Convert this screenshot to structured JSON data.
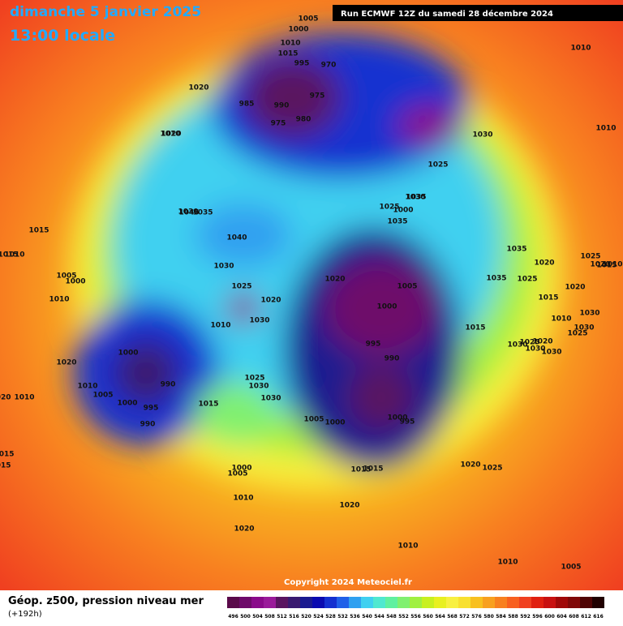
{
  "header": {
    "date": "dimanche 5 janvier 2025",
    "time": "13:00 locale",
    "run": "Run ECMWF 12Z du samedi 28 décembre 2024"
  },
  "copyright": "Copyright 2024 Meteociel.fr",
  "footer": {
    "label": "Géop. z500, pression niveau mer",
    "lead": "(+192h)"
  },
  "scale": {
    "values": [
      496,
      500,
      504,
      508,
      512,
      516,
      520,
      524,
      528,
      532,
      536,
      540,
      544,
      548,
      552,
      556,
      560,
      564,
      568,
      572,
      576,
      580,
      584,
      588,
      592,
      596,
      600,
      604,
      608,
      612,
      616
    ],
    "colors": [
      "#5a0a4a",
      "#6e0a6a",
      "#8a0a8a",
      "#9a1a9a",
      "#5a1460",
      "#3a1a70",
      "#1a1a90",
      "#0a0ab0",
      "#1430d0",
      "#2060e8",
      "#30a0f0",
      "#40d0f0",
      "#50e8d0",
      "#60f0a0",
      "#80f070",
      "#a0f040",
      "#c8f020",
      "#e8f020",
      "#f8f040",
      "#f8e030",
      "#f8c020",
      "#f8a020",
      "#f88020",
      "#f86020",
      "#f04020",
      "#e02010",
      "#c81010",
      "#a00808",
      "#800808",
      "#500404",
      "#200000"
    ]
  },
  "pressure_labels": [
    1005,
    1000,
    1010,
    1015,
    995,
    990,
    985,
    975,
    975,
    980,
    970,
    1020,
    1010,
    1030,
    1025,
    1025,
    1030,
    1035,
    1035,
    1030,
    1045,
    1040,
    1030,
    1025,
    1020,
    1030,
    1010,
    1015,
    1005,
    1000,
    1010,
    1020,
    1000,
    1010,
    1005,
    1000,
    995,
    990,
    990,
    1015,
    1010,
    1015,
    1020,
    1015,
    1010,
    1025,
    1030,
    1030,
    1035,
    1005,
    1000,
    1005,
    1000,
    995,
    990,
    1000,
    995,
    1015,
    1020,
    1015,
    1000,
    1005,
    1030,
    1025,
    1030,
    1025,
    1020,
    1035,
    1025,
    1020,
    1020,
    1015,
    1010,
    1030,
    1025,
    1035,
    1030,
    1020,
    1030,
    1025,
    1020,
    1015,
    1010,
    1020,
    1010,
    1010,
    1010,
    1005,
    1000,
    1010,
    1010,
    1020,
    1015,
    1015,
    1020
  ]
}
